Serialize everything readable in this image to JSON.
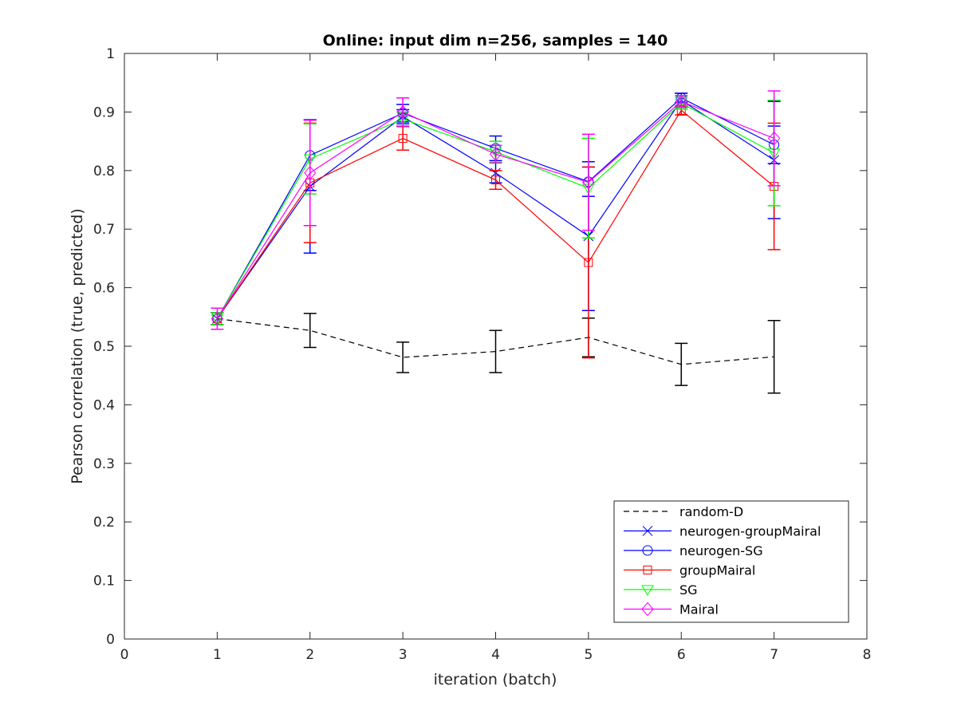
{
  "chart_data": {
    "type": "line",
    "title": "Online:  input dim n=256, samples = 140",
    "xlabel": "iteration (batch)",
    "ylabel": "Pearson correlation (true, predicted)",
    "xlim": [
      0,
      8
    ],
    "ylim": [
      0,
      1
    ],
    "xticks": [
      "0",
      "1",
      "2",
      "3",
      "4",
      "5",
      "6",
      "7",
      "8"
    ],
    "yticks": [
      "0",
      "0.1",
      "0.2",
      "0.3",
      "0.4",
      "0.5",
      "0.6",
      "0.7",
      "0.8",
      "0.9",
      "1"
    ],
    "grid": false,
    "legend_position": "bottom-right",
    "x": [
      1,
      2,
      3,
      4,
      5,
      6,
      7
    ],
    "series": [
      {
        "name": "random-D",
        "color": "#000000",
        "dash": "dashed",
        "marker": "none",
        "values": [
          0.547,
          0.527,
          0.481,
          0.491,
          0.515,
          0.469,
          0.482
        ],
        "errors": [
          0.01,
          0.029,
          0.026,
          0.036,
          0.033,
          0.036,
          0.062
        ]
      },
      {
        "name": "neurogen-groupMairal",
        "color": "#0000ff",
        "dash": "solid",
        "marker": "x",
        "values": [
          0.547,
          0.773,
          0.892,
          0.796,
          0.688,
          0.92,
          0.818
        ],
        "errors": [
          0.01,
          0.114,
          0.012,
          0.017,
          0.127,
          0.012,
          0.1
        ]
      },
      {
        "name": "neurogen-SG",
        "color": "#0000ff",
        "dash": "solid",
        "marker": "o",
        "values": [
          0.547,
          0.826,
          0.898,
          0.838,
          0.781,
          0.924,
          0.844
        ],
        "errors": [
          0.01,
          0.06,
          0.015,
          0.021,
          0.025,
          0.008,
          0.032
        ]
      },
      {
        "name": "groupMairal",
        "color": "#ff0000",
        "dash": "solid",
        "marker": "square",
        "values": [
          0.547,
          0.779,
          0.855,
          0.784,
          0.643,
          0.903,
          0.773
        ],
        "errors": [
          0.01,
          0.102,
          0.02,
          0.016,
          0.163,
          0.008,
          0.108
        ]
      },
      {
        "name": "SG",
        "color": "#00ff00",
        "dash": "solid",
        "marker": "triangle-down",
        "values": [
          0.547,
          0.82,
          0.888,
          0.832,
          0.77,
          0.915,
          0.83
        ],
        "errors": [
          0.01,
          0.06,
          0.012,
          0.018,
          0.085,
          0.01,
          0.09
        ]
      },
      {
        "name": "Mairal",
        "color": "#ff00ff",
        "dash": "solid",
        "marker": "diamond",
        "values": [
          0.547,
          0.796,
          0.9,
          0.828,
          0.78,
          0.918,
          0.855
        ],
        "errors": [
          0.018,
          0.09,
          0.024,
          0.015,
          0.082,
          0.01,
          0.081
        ]
      }
    ]
  }
}
